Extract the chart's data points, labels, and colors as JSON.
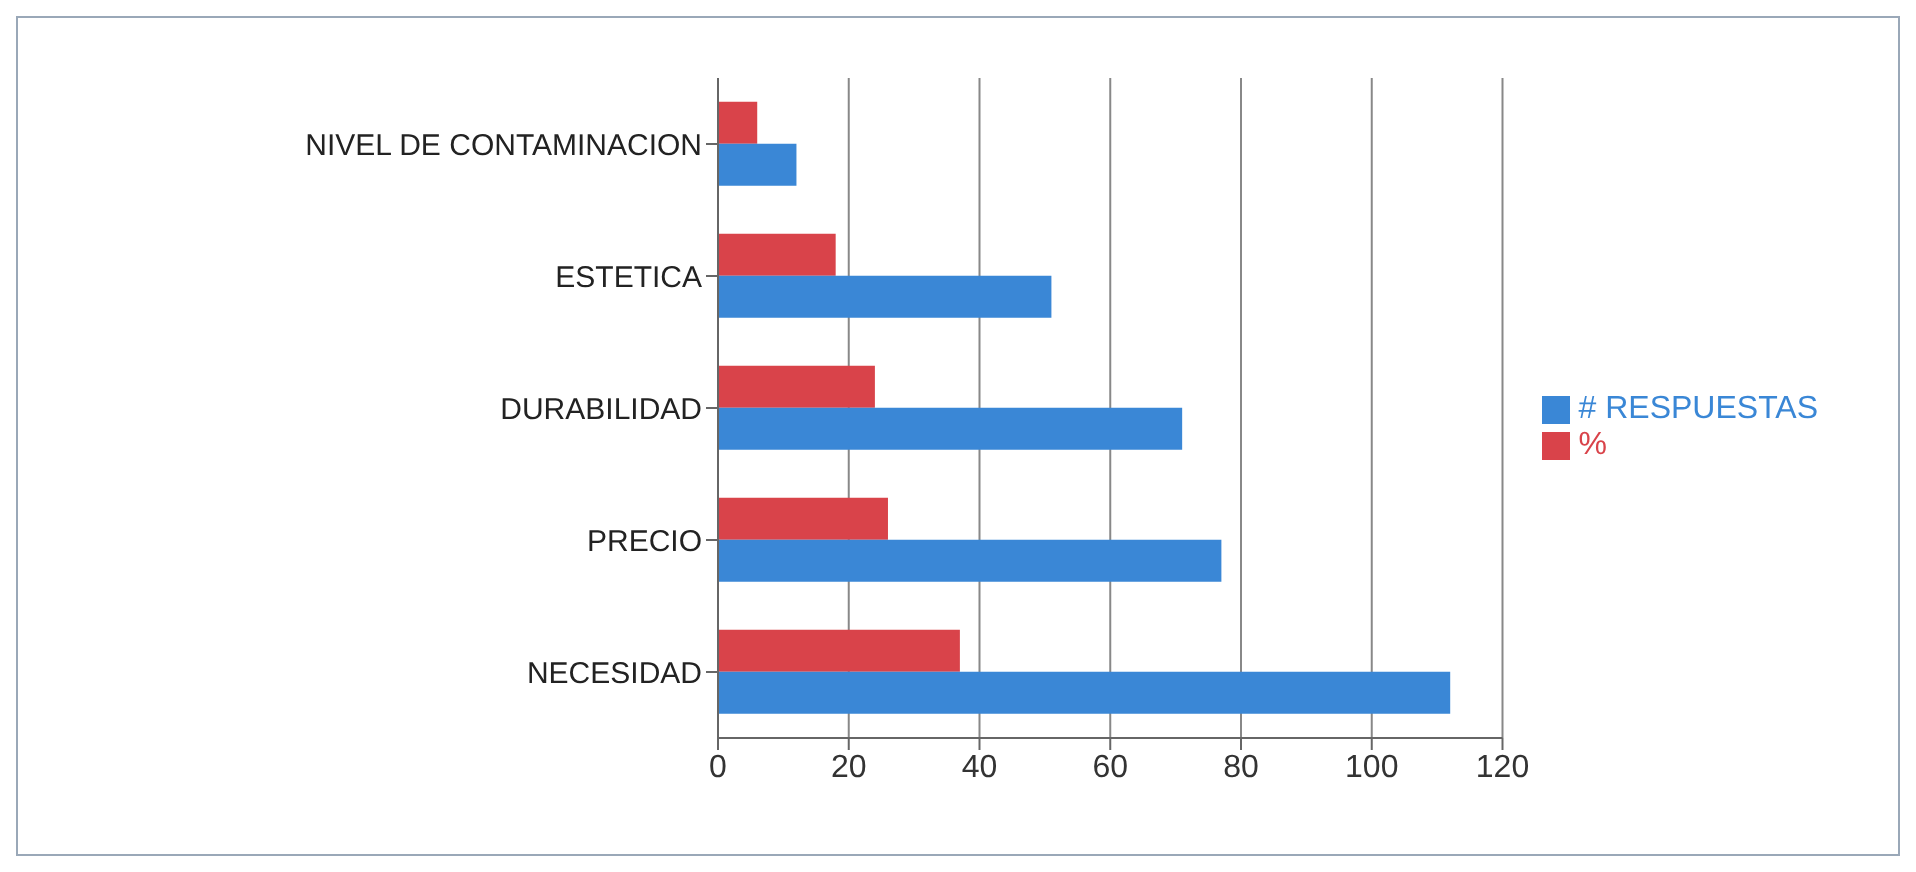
{
  "chart_data": {
    "type": "bar",
    "orientation": "horizontal",
    "categories": [
      "NIVEL DE CONTAMINACION",
      "ESTETICA",
      "DURABILIDAD",
      "PRECIO",
      "NECESIDAD"
    ],
    "series": [
      {
        "name": "%",
        "color": "#d9434a",
        "values": [
          6,
          18,
          24,
          26,
          37
        ]
      },
      {
        "name": "# RESPUESTAS",
        "color": "#3a87d6",
        "values": [
          12,
          51,
          71,
          77,
          112
        ]
      }
    ],
    "xlim": [
      0,
      120
    ],
    "xticks": [
      0,
      20,
      40,
      60,
      80,
      100,
      120
    ],
    "grid": "x",
    "legend": "right"
  }
}
